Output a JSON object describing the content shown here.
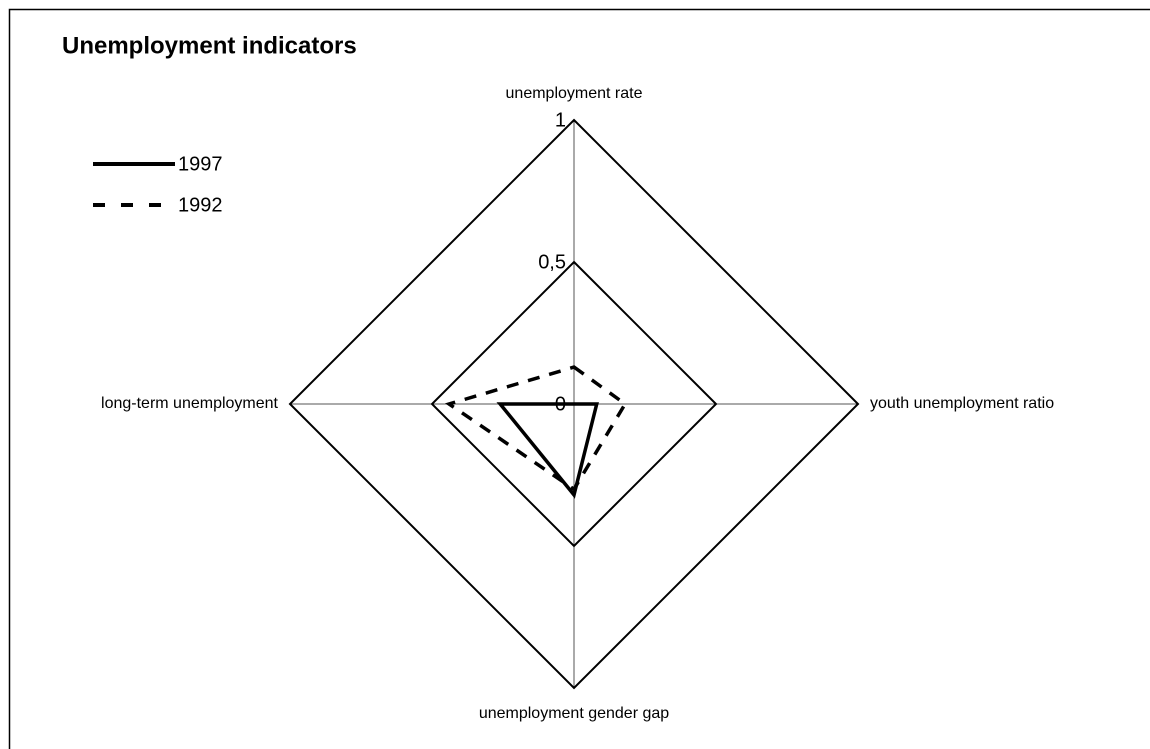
{
  "chart_data": {
    "type": "radar",
    "title": "Unemployment indicators",
    "categories": [
      "unemployment rate",
      "youth unemployment ratio",
      "unemployment gender gap",
      "long-term unemployment"
    ],
    "series": [
      {
        "name": "1997",
        "color": "#000000",
        "dash": "solid",
        "values": [
          0,
          0.08,
          0.32,
          0.26
        ]
      },
      {
        "name": "1992",
        "color": "#000000",
        "dash": "dashed",
        "values": [
          0.13,
          0.18,
          0.3,
          0.44
        ]
      }
    ],
    "ylim": [
      0,
      1
    ],
    "yticks": [
      0,
      {
        "value": 0.5,
        "label": "0,5"
      },
      1
    ],
    "legend": "upper left"
  }
}
